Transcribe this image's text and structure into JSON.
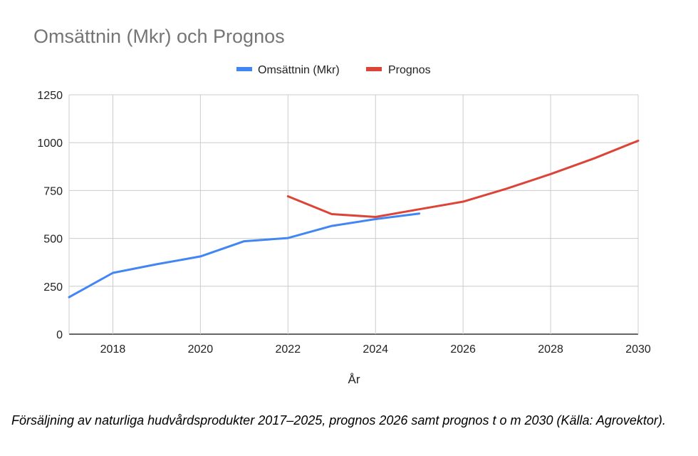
{
  "chart_data": {
    "type": "line",
    "title": "Omsättnin (Mkr) och Prognos",
    "xlabel": "År",
    "ylabel": "",
    "xlim": [
      2017,
      2030
    ],
    "ylim": [
      0,
      1250
    ],
    "x_ticks": [
      "2018",
      "2020",
      "2022",
      "2024",
      "2026",
      "2028",
      "2030"
    ],
    "y_ticks": [
      "0",
      "250",
      "500",
      "750",
      "1000",
      "1250"
    ],
    "grid": true,
    "legend_position": "top",
    "series": [
      {
        "name": "Omsättnin (Mkr)",
        "color": "#4285f4",
        "x": [
          2017,
          2018,
          2019,
          2020,
          2021,
          2022,
          2023,
          2024,
          2025
        ],
        "y": [
          193,
          320,
          365,
          406,
          485,
          502,
          565,
          601,
          630
        ]
      },
      {
        "name": "Prognos",
        "color": "#db4437",
        "x": [
          2022,
          2023,
          2024,
          2025,
          2026,
          2027,
          2028,
          2029,
          2030
        ],
        "y": [
          720,
          627,
          612,
          652,
          692,
          760,
          836,
          918,
          1010
        ]
      }
    ]
  },
  "caption": "Försäljning av naturliga hudvårdsprodukter 2017–2025, prognos 2026 samt prognos t o m 2030 (Källa: Agrovektor)."
}
